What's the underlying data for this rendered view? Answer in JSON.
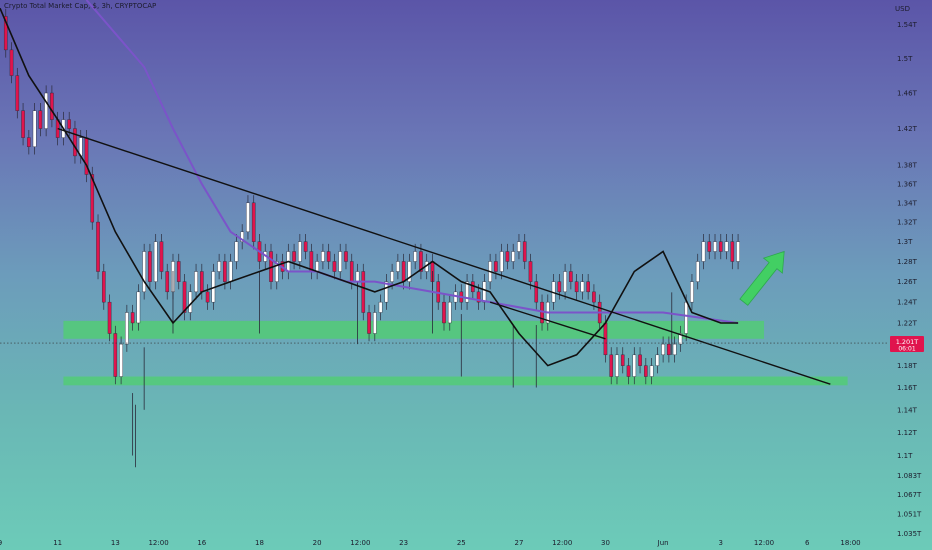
{
  "header": {
    "symbol_title": "Crypto Total Market Cap, $, 3h, CRYPTOCAP",
    "currency": "USD"
  },
  "price_marker": {
    "value": "1.201T",
    "countdown": "06:01"
  },
  "colors": {
    "candle_up": "#ffffff",
    "candle_down": "#e0144d",
    "ma_fast": "#111111",
    "ma_slow": "#7b54c9",
    "zone": "#4fd06e",
    "arrow": "#42cf63",
    "trendline": "#111111"
  },
  "chart_data": {
    "type": "candlestick",
    "title": "Crypto Total Market Cap, $, 3h, CRYPTOCAP",
    "y_axis": {
      "unit": "USD",
      "scale": "log",
      "ylim": [
        1.033,
        1.57
      ],
      "tick_labels": [
        "1.54T",
        "1.5T",
        "1.46T",
        "1.42T",
        "1.38T",
        "1.36T",
        "1.34T",
        "1.32T",
        "1.3T",
        "1.28T",
        "1.26T",
        "1.24T",
        "1.22T",
        "1.18T",
        "1.16T",
        "1.14T",
        "1.12T",
        "1.1T",
        "1.083T",
        "1.067T",
        "1.051T",
        "1.035T"
      ],
      "tick_values": [
        1.54,
        1.5,
        1.46,
        1.42,
        1.38,
        1.36,
        1.34,
        1.32,
        1.3,
        1.28,
        1.26,
        1.24,
        1.22,
        1.18,
        1.16,
        1.14,
        1.12,
        1.1,
        1.083,
        1.067,
        1.051,
        1.035
      ]
    },
    "x_axis": {
      "tick_labels": [
        "9",
        "11",
        "13",
        "12:00",
        "16",
        "18",
        "20",
        "12:00",
        "23",
        "25",
        "27",
        "12:00",
        "30",
        "Jun",
        "3",
        "12:00",
        "6",
        "18:00"
      ],
      "tick_positions": [
        0,
        20,
        40,
        55,
        70,
        90,
        110,
        125,
        140,
        160,
        180,
        195,
        210,
        230,
        250,
        265,
        280,
        295
      ],
      "range": [
        0,
        308
      ]
    },
    "candles_step": 0.5,
    "candles": [
      [
        1.55,
        1.51
      ],
      [
        1.51,
        1.48
      ],
      [
        1.48,
        1.44
      ],
      [
        1.44,
        1.41
      ],
      [
        1.41,
        1.4
      ],
      [
        1.4,
        1.44
      ],
      [
        1.44,
        1.42
      ],
      [
        1.42,
        1.46
      ],
      [
        1.46,
        1.43
      ],
      [
        1.43,
        1.41
      ],
      [
        1.41,
        1.43
      ],
      [
        1.43,
        1.42
      ],
      [
        1.42,
        1.39
      ],
      [
        1.39,
        1.41
      ],
      [
        1.41,
        1.37
      ],
      [
        1.37,
        1.32
      ],
      [
        1.32,
        1.27
      ],
      [
        1.27,
        1.24
      ],
      [
        1.24,
        1.21
      ],
      [
        1.21,
        1.17
      ],
      [
        1.17,
        1.2
      ],
      [
        1.2,
        1.23
      ],
      [
        1.23,
        1.22
      ],
      [
        1.22,
        1.25
      ],
      [
        1.25,
        1.29
      ],
      [
        1.29,
        1.26
      ],
      [
        1.26,
        1.3
      ],
      [
        1.3,
        1.27
      ],
      [
        1.27,
        1.25
      ],
      [
        1.25,
        1.28
      ],
      [
        1.28,
        1.26
      ],
      [
        1.26,
        1.23
      ],
      [
        1.23,
        1.25
      ],
      [
        1.25,
        1.27
      ],
      [
        1.27,
        1.25
      ],
      [
        1.25,
        1.24
      ],
      [
        1.24,
        1.27
      ],
      [
        1.27,
        1.28
      ],
      [
        1.28,
        1.26
      ],
      [
        1.26,
        1.28
      ],
      [
        1.28,
        1.3
      ],
      [
        1.3,
        1.31
      ],
      [
        1.31,
        1.34
      ],
      [
        1.34,
        1.3
      ],
      [
        1.3,
        1.28
      ],
      [
        1.28,
        1.29
      ],
      [
        1.29,
        1.26
      ],
      [
        1.26,
        1.28
      ],
      [
        1.28,
        1.27
      ],
      [
        1.27,
        1.29
      ],
      [
        1.29,
        1.28
      ],
      [
        1.28,
        1.3
      ],
      [
        1.3,
        1.29
      ],
      [
        1.29,
        1.27
      ],
      [
        1.27,
        1.28
      ],
      [
        1.28,
        1.29
      ],
      [
        1.29,
        1.28
      ],
      [
        1.28,
        1.27
      ],
      [
        1.27,
        1.29
      ],
      [
        1.29,
        1.28
      ],
      [
        1.28,
        1.26
      ],
      [
        1.26,
        1.27
      ],
      [
        1.27,
        1.23
      ],
      [
        1.23,
        1.21
      ],
      [
        1.21,
        1.23
      ],
      [
        1.23,
        1.24
      ],
      [
        1.24,
        1.26
      ],
      [
        1.26,
        1.27
      ],
      [
        1.27,
        1.28
      ],
      [
        1.28,
        1.26
      ],
      [
        1.26,
        1.28
      ],
      [
        1.28,
        1.29
      ],
      [
        1.29,
        1.27
      ],
      [
        1.27,
        1.28
      ],
      [
        1.28,
        1.26
      ],
      [
        1.26,
        1.24
      ],
      [
        1.24,
        1.22
      ],
      [
        1.22,
        1.24
      ],
      [
        1.24,
        1.25
      ],
      [
        1.25,
        1.24
      ],
      [
        1.24,
        1.26
      ],
      [
        1.26,
        1.25
      ],
      [
        1.25,
        1.24
      ],
      [
        1.24,
        1.26
      ],
      [
        1.26,
        1.28
      ],
      [
        1.28,
        1.27
      ],
      [
        1.27,
        1.29
      ],
      [
        1.29,
        1.28
      ],
      [
        1.28,
        1.29
      ],
      [
        1.29,
        1.3
      ],
      [
        1.3,
        1.28
      ],
      [
        1.28,
        1.26
      ],
      [
        1.26,
        1.24
      ],
      [
        1.24,
        1.22
      ],
      [
        1.22,
        1.24
      ],
      [
        1.24,
        1.26
      ],
      [
        1.26,
        1.25
      ],
      [
        1.25,
        1.27
      ],
      [
        1.27,
        1.26
      ],
      [
        1.26,
        1.25
      ],
      [
        1.25,
        1.26
      ],
      [
        1.26,
        1.25
      ],
      [
        1.25,
        1.24
      ],
      [
        1.24,
        1.22
      ],
      [
        1.22,
        1.19
      ],
      [
        1.19,
        1.17
      ],
      [
        1.17,
        1.19
      ],
      [
        1.19,
        1.18
      ],
      [
        1.18,
        1.17
      ],
      [
        1.17,
        1.19
      ],
      [
        1.19,
        1.18
      ],
      [
        1.18,
        1.17
      ],
      [
        1.17,
        1.18
      ],
      [
        1.18,
        1.19
      ],
      [
        1.19,
        1.2
      ],
      [
        1.2,
        1.19
      ],
      [
        1.19,
        1.2
      ],
      [
        1.2,
        1.21
      ],
      [
        1.21,
        1.24
      ],
      [
        1.24,
        1.26
      ],
      [
        1.26,
        1.28
      ],
      [
        1.28,
        1.3
      ],
      [
        1.3,
        1.29
      ],
      [
        1.29,
        1.3
      ],
      [
        1.3,
        1.29
      ],
      [
        1.29,
        1.3
      ],
      [
        1.3,
        1.28
      ],
      [
        1.28,
        1.3
      ],
      [
        1.3,
        1.29
      ],
      [
        1.29,
        1.26
      ],
      [
        1.26,
        1.23
      ],
      [
        1.23,
        1.21
      ],
      [
        1.21,
        1.22
      ],
      [
        1.22,
        1.21
      ],
      [
        1.21,
        1.22
      ],
      [
        1.22,
        1.23
      ],
      [
        1.23,
        1.22
      ],
      [
        1.22,
        1.24
      ],
      [
        1.24,
        1.23
      ],
      [
        1.23,
        1.24
      ],
      [
        1.24,
        1.22
      ],
      [
        1.22,
        1.2
      ]
    ],
    "lows": [
      [
        46,
        1.1
      ],
      [
        47,
        1.09
      ],
      [
        50,
        1.14
      ],
      [
        60,
        1.21
      ],
      [
        90,
        1.21
      ],
      [
        124,
        1.2
      ],
      [
        150,
        1.21
      ],
      [
        160,
        1.17
      ],
      [
        178,
        1.16
      ],
      [
        186,
        1.16
      ],
      [
        233,
        1.19
      ]
    ],
    "ma_fast_points": [
      [
        0,
        1.56
      ],
      [
        10,
        1.48
      ],
      [
        20,
        1.43
      ],
      [
        30,
        1.38
      ],
      [
        40,
        1.31
      ],
      [
        50,
        1.26
      ],
      [
        60,
        1.22
      ],
      [
        70,
        1.25
      ],
      [
        80,
        1.26
      ],
      [
        90,
        1.27
      ],
      [
        100,
        1.28
      ],
      [
        110,
        1.27
      ],
      [
        120,
        1.26
      ],
      [
        130,
        1.25
      ],
      [
        140,
        1.26
      ],
      [
        150,
        1.28
      ],
      [
        160,
        1.26
      ],
      [
        170,
        1.25
      ],
      [
        180,
        1.21
      ],
      [
        190,
        1.18
      ],
      [
        200,
        1.19
      ],
      [
        210,
        1.22
      ],
      [
        220,
        1.27
      ],
      [
        230,
        1.29
      ],
      [
        240,
        1.23
      ],
      [
        250,
        1.22
      ],
      [
        256,
        1.22
      ]
    ],
    "ma_slow_points": [
      [
        30,
        1.57
      ],
      [
        50,
        1.49
      ],
      [
        60,
        1.42
      ],
      [
        70,
        1.36
      ],
      [
        80,
        1.31
      ],
      [
        90,
        1.29
      ],
      [
        100,
        1.27
      ],
      [
        110,
        1.27
      ],
      [
        120,
        1.26
      ],
      [
        130,
        1.26
      ],
      [
        150,
        1.25
      ],
      [
        170,
        1.24
      ],
      [
        190,
        1.23
      ],
      [
        210,
        1.23
      ],
      [
        230,
        1.23
      ],
      [
        256,
        1.22
      ]
    ],
    "trendlines": [
      {
        "from": [
          20,
          1.42
        ],
        "to": [
          288,
          1.163
        ]
      },
      {
        "from": [
          170,
          1.24
        ],
        "to": [
          210,
          1.205
        ]
      }
    ],
    "zones": [
      {
        "from_x": 22,
        "to_x": 265,
        "y_low": 1.205,
        "y_high": 1.222
      },
      {
        "from_x": 22,
        "to_x": 294,
        "y_low": 1.162,
        "y_high": 1.17
      }
    ],
    "arrow": {
      "from": [
        258,
        1.24
      ],
      "to": [
        272,
        1.29
      ]
    },
    "last_price": 1.201
  }
}
